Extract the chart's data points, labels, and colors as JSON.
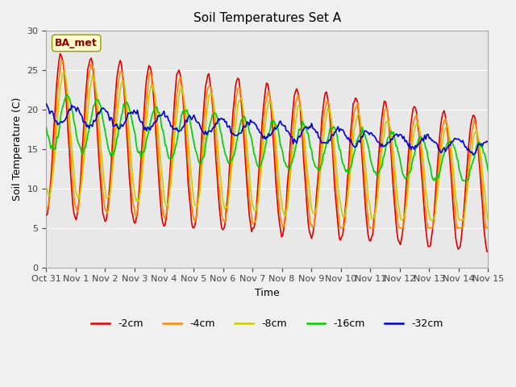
{
  "title": "Soil Temperatures Set A",
  "xlabel": "Time",
  "ylabel": "Soil Temperature (C)",
  "ylim": [
    0,
    30
  ],
  "annotation": "BA_met",
  "bg_color": "#e8e8e8",
  "fig_bg_color": "#f0f0f0",
  "series_colors": {
    "-2cm": "#dd0000",
    "-4cm": "#ff8800",
    "-8cm": "#cccc00",
    "-16cm": "#00cc00",
    "-32cm": "#0000cc"
  },
  "xtick_labels": [
    "Oct 31",
    "Nov 1",
    "Nov 2",
    "Nov 3",
    "Nov 4",
    "Nov 5",
    "Nov 6",
    "Nov 7",
    "Nov 8",
    "Nov 9",
    "Nov 10",
    "Nov 11",
    "Nov 12",
    "Nov 13",
    "Nov 14",
    "Nov 15"
  ],
  "ytick_values": [
    0,
    5,
    10,
    15,
    20,
    25,
    30
  ],
  "num_days": 15,
  "grid_color": "white",
  "annotation_facecolor": "#ffffcc",
  "annotation_edgecolor": "#999900",
  "annotation_textcolor": "#8b0000"
}
